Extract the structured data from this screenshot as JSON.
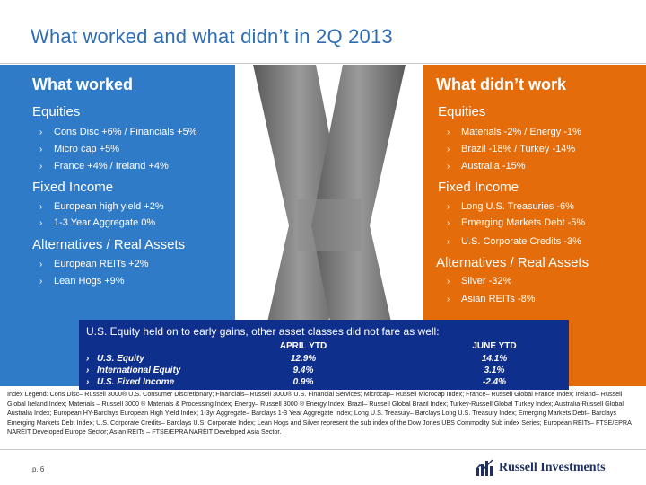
{
  "title": "What worked and what didn’t in 2Q 2013",
  "left": {
    "heading": "What worked",
    "sections": [
      {
        "title": "Equities",
        "items": [
          "Cons Disc +6% / Financials +5%",
          "Micro cap +5%",
          "France +4% / Ireland +4%"
        ]
      },
      {
        "title": "Fixed Income",
        "items": [
          "European high yield +2%",
          "1-3 Year Aggregate 0%"
        ]
      },
      {
        "title": "Alternatives / Real Assets",
        "items": [
          "European REITs +2%",
          "Lean Hogs +9%"
        ]
      }
    ]
  },
  "right": {
    "heading": "What didn’t work",
    "sections": [
      {
        "title": "Equities",
        "items": [
          "Materials -2% / Energy -1%",
          "Brazil -18% / Turkey -14%",
          "Australia -15%"
        ]
      },
      {
        "title": "Fixed Income",
        "items": [
          "Long U.S. Treasuries -6%",
          "Emerging Markets Debt -5%",
          "U.S. Corporate Credits -3%"
        ]
      },
      {
        "title": "Alternatives / Real Assets",
        "items": [
          "Silver -32%",
          "Asian REITs -8%"
        ]
      }
    ]
  },
  "equity_box": {
    "headline": "U.S. Equity held on to early gains, other asset classes did not fare as well:",
    "col1": "APRIL YTD",
    "col2": "JUNE YTD",
    "rows": [
      {
        "label": "U.S. Equity",
        "april": "12.9%",
        "june": "14.1%"
      },
      {
        "label": "International Equity",
        "april": "9.4%",
        "june": "3.1%"
      },
      {
        "label": "U.S. Fixed Income",
        "april": "0.9%",
        "june": "-2.4%"
      }
    ]
  },
  "legend": "Index Legend: Cons Disc– Russell 3000® U.S. Consumer Discretionary; Financials– Russell 3000® U.S. Financial Services; Microcap– Russell Microcap Index; France– Russell Global France Index; Ireland– Russell Global Ireland Index; Materials – Russell 3000 ® Materials & Processing Index; Energy– Russell 3000 ® Energy Index; Brazil– Russell Global Brazil Index; Turkey-Russell Global Turkey Index; Australia-Russell Global Australia Index; European HY-Barclays European High Yield Index; 1-3yr Aggregate– Barclays 1-3 Year Aggregate Index; Long U.S. Treasury– Barclays Long U.S. Treasury Index; Emerging Markets Debt– Barclays Emerging Markets Debt Index; U.S. Corporate Credits– Barclays U.S. Corporate Index; Lean Hogs and Silver represent the sub index of the Dow Jones UBS Commodity Sub index Series; European REITs– FTSE/EPRA NAREIT Developed Europe Sector; Asian REITs – FTSE/EPRA NAREIT Developed Asia Sector.",
  "footer": {
    "page": "p. 6",
    "brand": "Russell Investments"
  },
  "colors": {
    "left_panel": "#2f7bc8",
    "right_panel": "#e46c0a",
    "box": "#0e2f8c",
    "title": "#2f6db5"
  }
}
